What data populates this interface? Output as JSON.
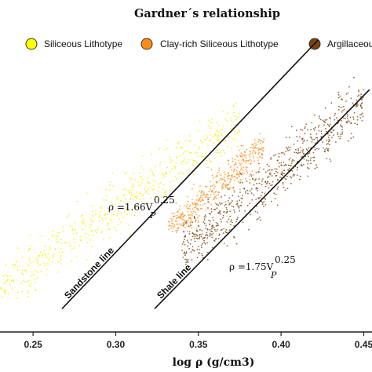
{
  "chart_data": {
    "type": "scatter",
    "title": "Gardner´s relationship",
    "xlabel": "log ρ (g/cm3)",
    "ylabel": "",
    "xlim": [
      0.23,
      0.455
    ],
    "ylim": [
      0,
      1
    ],
    "x_ticks": [
      "0.25",
      "0.30",
      "0.35",
      "0.40",
      "0.45"
    ],
    "x_tick_values": [
      0.25,
      0.3,
      0.35,
      0.4,
      0.45
    ],
    "grid": false,
    "legend_placement": "top",
    "series": [
      {
        "name": "Siliceous Lithotype",
        "color": "#ffff00",
        "point_color": "#f2f000",
        "point_count": 3200,
        "x_range": [
          0.23,
          0.375
        ],
        "y_range": [
          0.1,
          0.72
        ]
      },
      {
        "name": "Clay-rich Siliceous Lithotype",
        "color": "#ff8c1a",
        "point_color": "#ff8c1a",
        "point_count": 2600,
        "x_range": [
          0.33,
          0.39
        ],
        "y_range": [
          0.3,
          0.6
        ]
      },
      {
        "name": "Argillaceous",
        "color": "#7a4310",
        "point_color": "#7a4310",
        "point_count": 4200,
        "x_range": [
          0.33,
          0.45
        ],
        "y_range": [
          0.2,
          0.8
        ]
      }
    ],
    "annotations": [
      {
        "label": "Sandstone line",
        "equation_base": "ρ =1.66V",
        "equation_exp": "0.25",
        "equation_sub": "P",
        "x": [
          0.2675,
          0.4225
        ],
        "y": [
          0.07,
          0.88
        ]
      },
      {
        "label": "Shale line",
        "equation_base": "ρ =1.75V",
        "equation_exp": "0.25",
        "equation_sub": "P",
        "x": [
          0.3235,
          0.4535
        ],
        "y": [
          0.07,
          0.73
        ]
      }
    ]
  }
}
